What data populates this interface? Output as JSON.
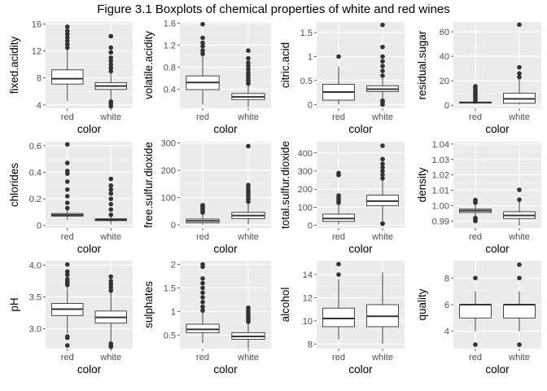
{
  "title": "Figure 3.1 Boxplots of chemical properties of white and red wines",
  "colors": {
    "panel": "#ebebeb",
    "grid_major": "#ffffff",
    "box_fill": "#ffffff",
    "stroke": "#333333"
  },
  "chart_data": [
    {
      "type": "boxplot",
      "xlabel": "color",
      "ylabel": "fixed.acidity",
      "categories": [
        "red",
        "white"
      ],
      "ylim": [
        3.5,
        16.3
      ],
      "yticks": [
        4,
        8,
        12,
        16
      ],
      "boxes": [
        {
          "min": 4.6,
          "q1": 7.1,
          "median": 7.9,
          "q3": 9.2,
          "max": 12.3,
          "outliers": [
            12.5,
            13.0,
            13.5,
            14.0,
            14.5,
            15.0,
            15.6
          ]
        },
        {
          "min": 4.8,
          "q1": 6.3,
          "median": 6.8,
          "q3": 7.3,
          "max": 8.8,
          "outliers": [
            3.8,
            4.2,
            4.5,
            9.0,
            9.5,
            10.0,
            10.5,
            11.0,
            11.8,
            12.5,
            14.2
          ]
        }
      ]
    },
    {
      "type": "boxplot",
      "xlabel": "color",
      "ylabel": "volatile.acidity",
      "categories": [
        "red",
        "white"
      ],
      "ylim": [
        0.05,
        1.62
      ],
      "yticks": [
        0.4,
        0.8,
        1.2,
        1.6
      ],
      "boxes": [
        {
          "min": 0.12,
          "q1": 0.39,
          "median": 0.52,
          "q3": 0.64,
          "max": 1.01,
          "outliers": [
            1.04,
            1.1,
            1.18,
            1.24,
            1.33,
            1.58
          ]
        },
        {
          "min": 0.08,
          "q1": 0.21,
          "median": 0.26,
          "q3": 0.32,
          "max": 0.48,
          "outliers": [
            0.5,
            0.55,
            0.6,
            0.65,
            0.7,
            0.76,
            0.82,
            0.88,
            0.96,
            1.1
          ]
        }
      ]
    },
    {
      "type": "boxplot",
      "xlabel": "color",
      "ylabel": "citric.acid",
      "categories": [
        "red",
        "white"
      ],
      "ylim": [
        -0.08,
        1.72
      ],
      "yticks": [
        0.0,
        0.5,
        1.0,
        1.5
      ],
      "boxes": [
        {
          "min": 0.0,
          "q1": 0.09,
          "median": 0.26,
          "q3": 0.42,
          "max": 0.79,
          "outliers": [
            1.0
          ]
        },
        {
          "min": 0.13,
          "q1": 0.27,
          "median": 0.32,
          "q3": 0.39,
          "max": 0.55,
          "outliers": [
            0.0,
            0.05,
            0.08,
            0.6,
            0.7,
            0.8,
            0.9,
            1.0,
            1.2,
            1.66
          ]
        }
      ]
    },
    {
      "type": "boxplot",
      "xlabel": "color",
      "ylabel": "residual.sugar",
      "categories": [
        "red",
        "white"
      ],
      "ylim": [
        -2.5,
        68
      ],
      "yticks": [
        0,
        20,
        40,
        60
      ],
      "boxes": [
        {
          "min": 0.9,
          "q1": 1.9,
          "median": 2.2,
          "q3": 2.6,
          "max": 3.6,
          "outliers": [
            4.0,
            5.5,
            7.0,
            8.5,
            10.0,
            12.0,
            13.9,
            15.5
          ]
        },
        {
          "min": 0.6,
          "q1": 1.7,
          "median": 5.2,
          "q3": 9.9,
          "max": 22.0,
          "outliers": [
            23.0,
            26.0,
            31.0,
            65.8
          ]
        }
      ]
    },
    {
      "type": "boxplot",
      "xlabel": "color",
      "ylabel": "chlorides",
      "categories": [
        "red",
        "white"
      ],
      "ylim": [
        -0.02,
        0.63
      ],
      "yticks": [
        0.0,
        0.2,
        0.4,
        0.6
      ],
      "boxes": [
        {
          "min": 0.04,
          "q1": 0.07,
          "median": 0.079,
          "q3": 0.09,
          "max": 0.12,
          "outliers": [
            0.13,
            0.17,
            0.22,
            0.27,
            0.33,
            0.39,
            0.41,
            0.47,
            0.61
          ]
        },
        {
          "min": 0.009,
          "q1": 0.036,
          "median": 0.043,
          "q3": 0.05,
          "max": 0.07,
          "outliers": [
            0.08,
            0.12,
            0.16,
            0.2,
            0.24,
            0.27,
            0.3,
            0.35
          ]
        }
      ]
    },
    {
      "type": "boxplot",
      "xlabel": "color",
      "ylabel": "free.sulfur.dioxide",
      "categories": [
        "red",
        "white"
      ],
      "ylim": [
        -12,
        305
      ],
      "yticks": [
        0,
        100,
        200,
        300
      ],
      "boxes": [
        {
          "min": 1,
          "q1": 7,
          "median": 14,
          "q3": 21,
          "max": 42,
          "outliers": [
            45,
            50,
            55,
            62,
            68,
            72
          ]
        },
        {
          "min": 2,
          "q1": 23,
          "median": 34,
          "q3": 46,
          "max": 80,
          "outliers": [
            85,
            95,
            105,
            115,
            125,
            135,
            146,
            289
          ]
        }
      ]
    },
    {
      "type": "boxplot",
      "xlabel": "color",
      "ylabel": "total.sulfur.dioxide",
      "categories": [
        "red",
        "white"
      ],
      "ylim": [
        -15,
        462
      ],
      "yticks": [
        0,
        100,
        200,
        300,
        400
      ],
      "boxes": [
        {
          "min": 6,
          "q1": 22,
          "median": 38,
          "q3": 62,
          "max": 122,
          "outliers": [
            125,
            135,
            145,
            155,
            165,
            278,
            289
          ]
        },
        {
          "min": 19,
          "q1": 108,
          "median": 134,
          "q3": 167,
          "max": 256,
          "outliers": [
            9,
            10,
            260,
            280,
            300,
            320,
            340,
            366,
            440
          ]
        }
      ]
    },
    {
      "type": "boxplot",
      "xlabel": "color",
      "ylabel": "density",
      "categories": [
        "red",
        "white"
      ],
      "ylim": [
        0.9855,
        1.0415
      ],
      "yticks": [
        0.99,
        1.0,
        1.01,
        1.02,
        1.03,
        1.04
      ],
      "ytick_labels": [
        "0.99",
        "1.00",
        "1.01",
        "1.02",
        "1.03",
        "1.04"
      ],
      "boxes": [
        {
          "min": 0.9932,
          "q1": 0.9956,
          "median": 0.9968,
          "q3": 0.9978,
          "max": 1.001,
          "outliers": [
            0.9901,
            0.9912,
            0.992,
            1.002,
            1.0032,
            1.0037
          ]
        },
        {
          "min": 0.9871,
          "q1": 0.9917,
          "median": 0.9937,
          "q3": 0.9961,
          "max": 1.0024,
          "outliers": [
            1.0103,
            1.0039
          ]
        }
      ]
    },
    {
      "type": "boxplot",
      "xlabel": "color",
      "ylabel": "pH",
      "categories": [
        "red",
        "white"
      ],
      "ylim": [
        2.69,
        4.07
      ],
      "yticks": [
        3.0,
        3.5,
        4.0
      ],
      "ytick_labels": [
        "3.0",
        "3.5",
        "4.0"
      ],
      "boxes": [
        {
          "min": 2.93,
          "q1": 3.21,
          "median": 3.31,
          "q3": 3.4,
          "max": 3.68,
          "outliers": [
            2.74,
            2.86,
            2.88,
            3.69,
            3.72,
            3.75,
            3.78,
            3.85,
            3.9,
            4.01
          ]
        },
        {
          "min": 2.8,
          "q1": 3.09,
          "median": 3.18,
          "q3": 3.28,
          "max": 3.57,
          "outliers": [
            2.72,
            2.74,
            2.77,
            3.6,
            3.65,
            3.7,
            3.75,
            3.82
          ]
        }
      ]
    },
    {
      "type": "boxplot",
      "xlabel": "color",
      "ylabel": "sulphates",
      "categories": [
        "red",
        "white"
      ],
      "ylim": [
        0.21,
        2.08
      ],
      "yticks": [
        0.5,
        1.0,
        1.5,
        2.0
      ],
      "boxes": [
        {
          "min": 0.33,
          "q1": 0.55,
          "median": 0.62,
          "q3": 0.73,
          "max": 0.99,
          "outliers": [
            1.02,
            1.1,
            1.2,
            1.3,
            1.4,
            1.5,
            1.6,
            1.7,
            1.95,
            2.0
          ]
        },
        {
          "min": 0.22,
          "q1": 0.41,
          "median": 0.47,
          "q3": 0.55,
          "max": 0.76,
          "outliers": [
            0.78,
            0.82,
            0.87,
            0.92,
            0.97,
            1.02,
            1.08
          ]
        }
      ]
    },
    {
      "type": "boxplot",
      "xlabel": "color",
      "ylabel": "alcohol",
      "categories": [
        "red",
        "white"
      ],
      "ylim": [
        7.6,
        15.2
      ],
      "yticks": [
        8,
        10,
        12,
        14
      ],
      "boxes": [
        {
          "min": 8.4,
          "q1": 9.5,
          "median": 10.2,
          "q3": 11.1,
          "max": 13.6,
          "outliers": [
            14.0,
            14.9
          ]
        },
        {
          "min": 8.0,
          "q1": 9.5,
          "median": 10.4,
          "q3": 11.4,
          "max": 14.2,
          "outliers": []
        }
      ]
    },
    {
      "type": "boxplot",
      "xlabel": "color",
      "ylabel": "quality",
      "categories": [
        "red",
        "white"
      ],
      "ylim": [
        2.7,
        9.3
      ],
      "yticks": [
        4,
        6,
        8
      ],
      "boxes": [
        {
          "min": 4,
          "q1": 5,
          "median": 6,
          "q3": 6,
          "max": 7,
          "outliers": [
            3,
            8
          ]
        },
        {
          "min": 4,
          "q1": 5,
          "median": 6,
          "q3": 6,
          "max": 7,
          "outliers": [
            3,
            8,
            9
          ]
        }
      ]
    }
  ]
}
